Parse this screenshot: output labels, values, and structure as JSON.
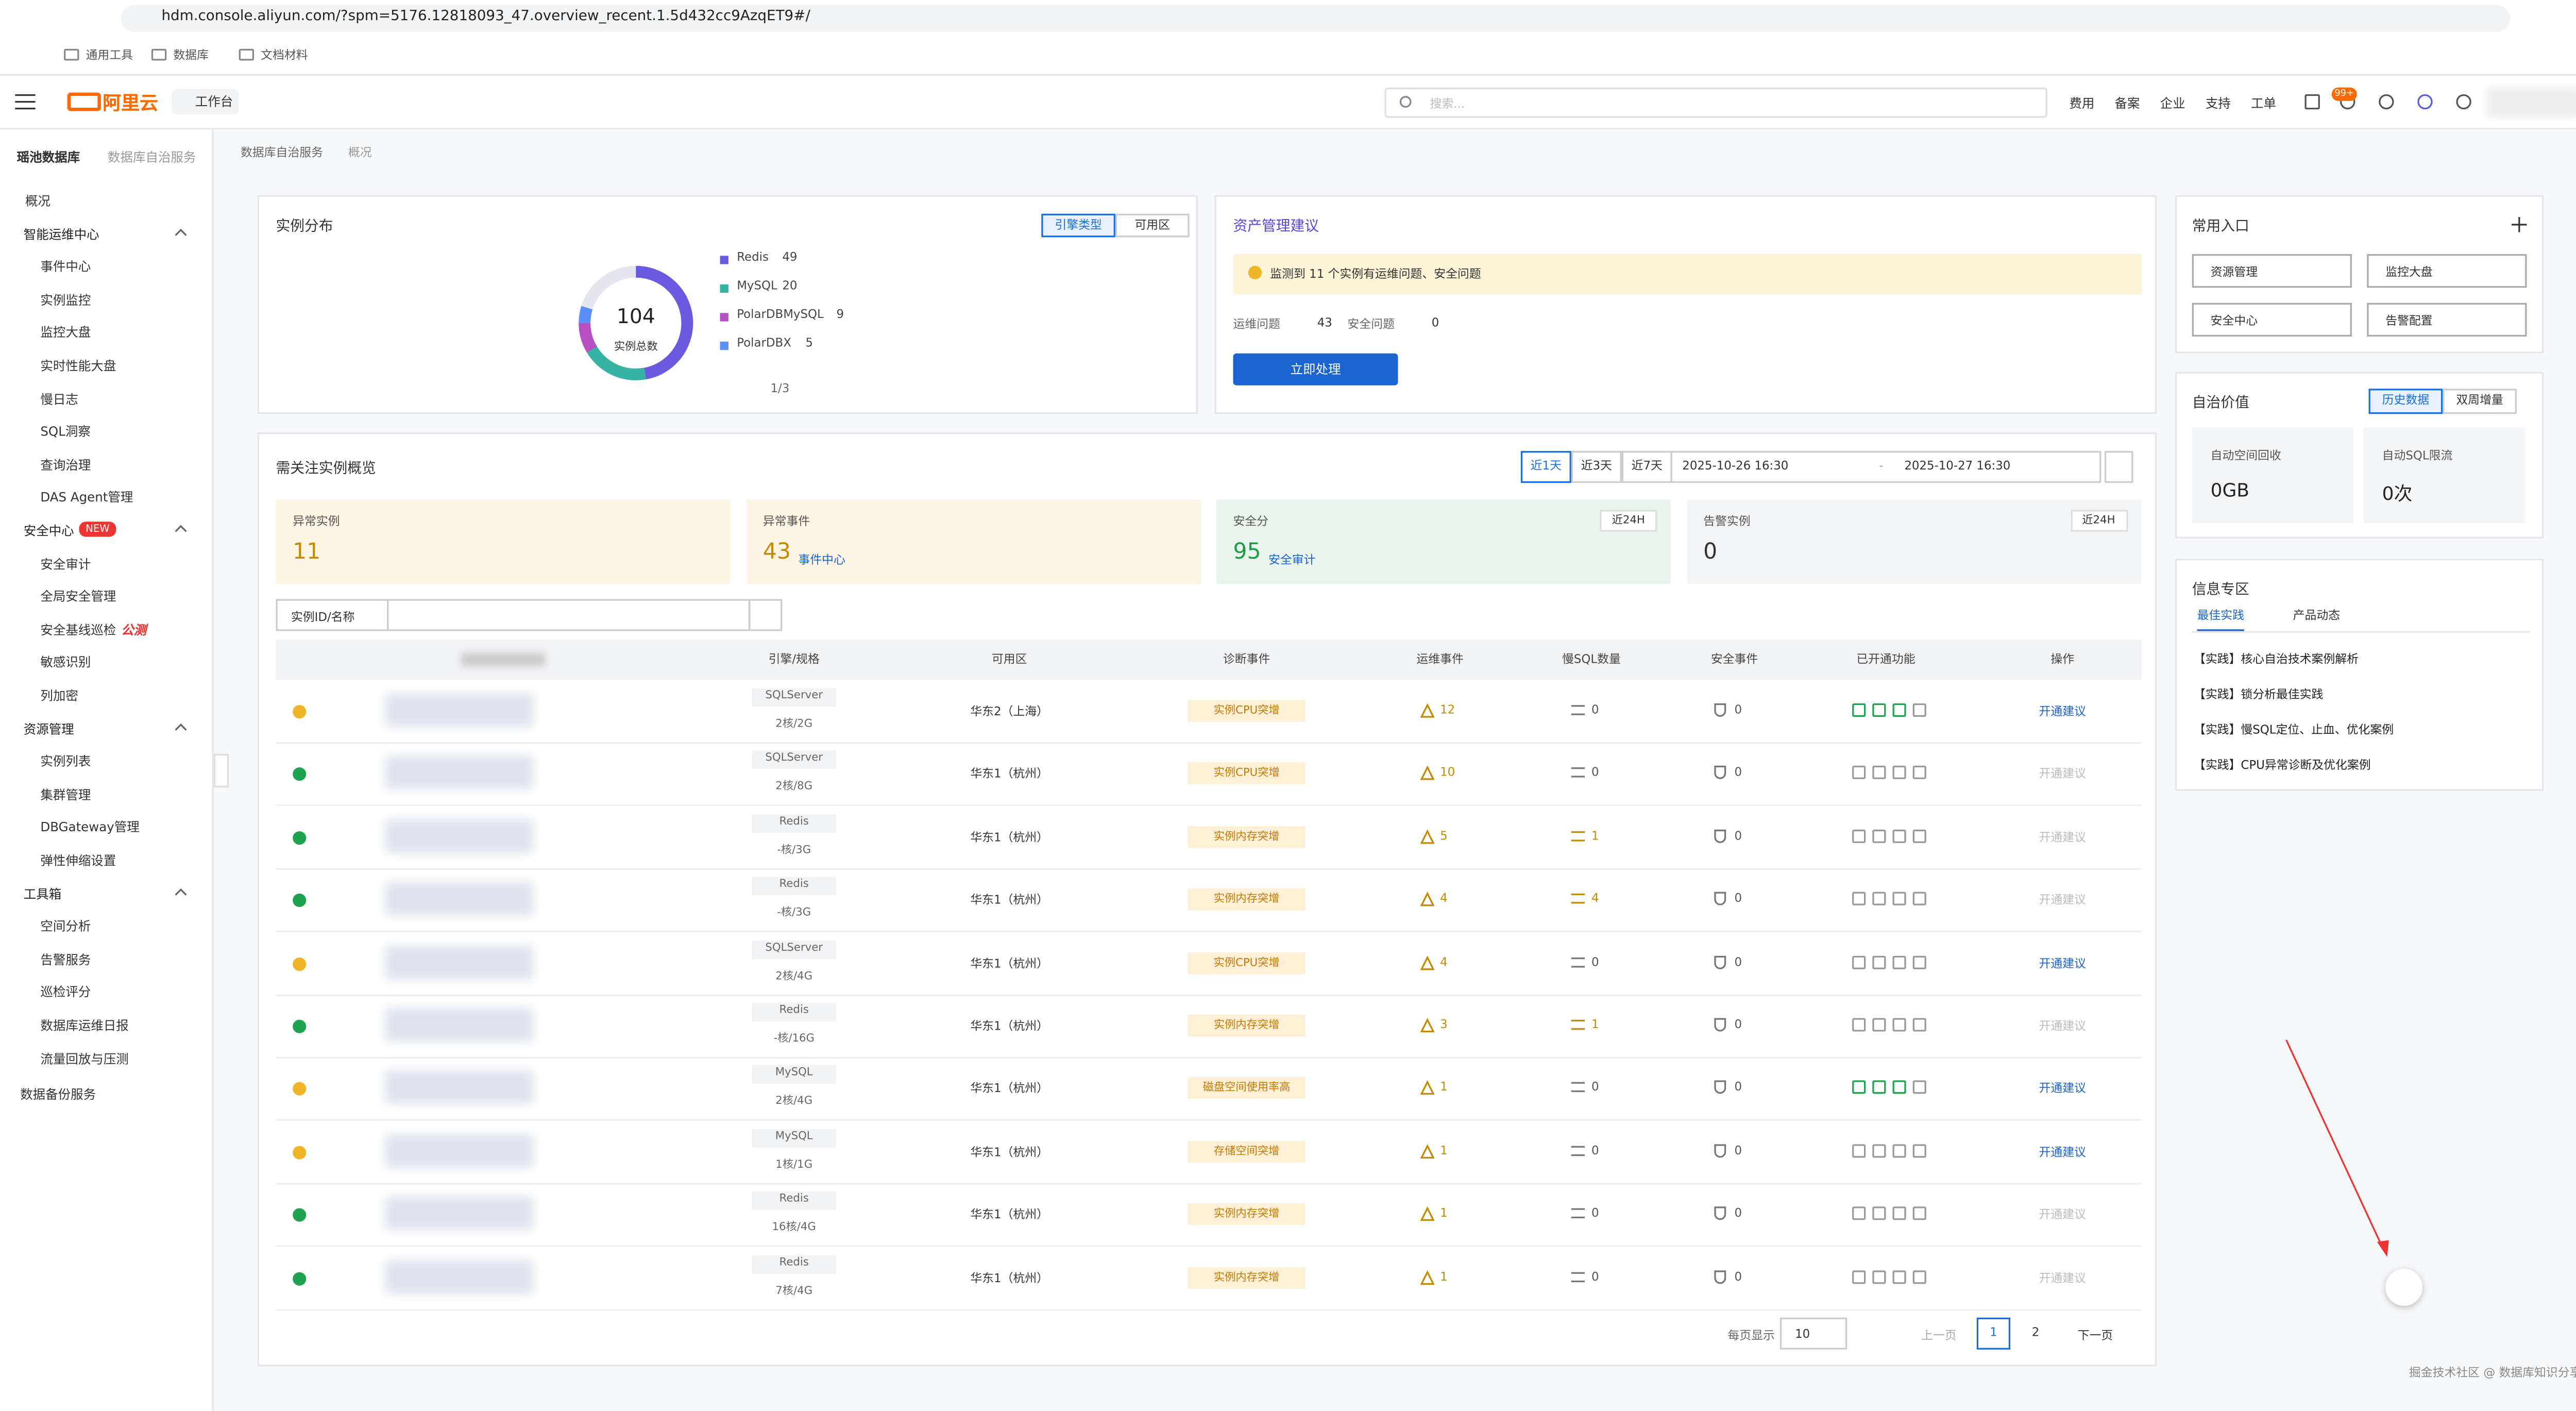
{
  "browser": {
    "url": "hdm.console.aliyun.com/?spm=5176.12818093_47.overview_recent.1.5d432cc9AzqET9#/",
    "bookmarks": [
      "通用工具",
      "数据库",
      "文档材料"
    ]
  },
  "topbar": {
    "logo": "阿里云",
    "workbench": "工作台",
    "search_placeholder": "搜索...",
    "links": [
      "费用",
      "备案",
      "企业",
      "支持",
      "工单"
    ],
    "badge": "99+"
  },
  "sidebar": {
    "breadcrumb": [
      "瑶池数据库",
      "数据库自治服务"
    ],
    "top": "概况",
    "groups": [
      {
        "title": "智能运维中心",
        "items": [
          "事件中心",
          "实例监控",
          "监控大盘",
          "实时性能大盘",
          "慢日志",
          "SQL洞察",
          "查询治理",
          "DAS Agent管理"
        ]
      },
      {
        "title": "安全中心",
        "tag": "NEW",
        "items": [
          "安全审计",
          "全局安全管理",
          {
            "label": "安全基线巡检",
            "tag": "公测"
          },
          "敏感识别",
          "列加密"
        ]
      },
      {
        "title": "资源管理",
        "items": [
          "实例列表",
          "集群管理",
          "DBGateway管理",
          "弹性伸缩设置"
        ]
      },
      {
        "title": "工具箱",
        "items": [
          "空间分析",
          "告警服务",
          "巡检评分",
          "数据库运维日报",
          "流量回放与压测"
        ]
      }
    ],
    "bottom": "数据备份服务"
  },
  "breadcrumb": [
    "数据库自治服务",
    "概况"
  ],
  "distribution": {
    "title": "实例分布",
    "toggles": [
      "引擎类型",
      "可用区"
    ],
    "total": 104,
    "total_label": "实例总数",
    "pager": "1/3",
    "series": [
      {
        "name": "Redis",
        "value": 49,
        "color": "#6a5ae0"
      },
      {
        "name": "MySQL",
        "value": 20,
        "color": "#36b3a4"
      },
      {
        "name": "PolarDBMySQL",
        "value": 9,
        "color": "#b54fc2"
      },
      {
        "name": "PolarDBX",
        "value": 5,
        "color": "#5b8ff9"
      }
    ]
  },
  "assets": {
    "title": "资产管理建议",
    "alert": "监测到 11 个实例有运维问题、安全问题",
    "stats": [
      {
        "label": "运维问题",
        "value": 43
      },
      {
        "label": "安全问题",
        "value": 0
      }
    ],
    "button": "立即处理"
  },
  "shortcuts": {
    "title": "常用入口",
    "buttons": [
      "资源管理",
      "监控大盘",
      "安全中心",
      "告警配置"
    ]
  },
  "autonomy": {
    "title": "自治价值",
    "toggles": [
      "历史数据",
      "双周增量"
    ],
    "cards": [
      {
        "label": "自动空间回收",
        "value": "0GB"
      },
      {
        "label": "自动SQL限流",
        "value": "0次"
      }
    ]
  },
  "info": {
    "title": "信息专区",
    "tabs": [
      "最佳实践",
      "产品动态"
    ],
    "links": [
      "【实践】核心自治技术案例解析",
      "【实践】锁分析最佳实践",
      "【实践】慢SQL定位、止血、优化案例",
      "【实践】CPU异常诊断及优化案例"
    ]
  },
  "overview": {
    "title": "需关注实例概览",
    "ranges": [
      "近1天",
      "近3天",
      "近7天"
    ],
    "start": "2025-10-26 16:30",
    "separator": "-",
    "end": "2025-10-27 16:30",
    "stats": [
      {
        "label": "异常实例",
        "value": 11
      },
      {
        "label": "异常事件",
        "value": 43,
        "link": "事件中心"
      },
      {
        "label": "安全分",
        "value": 95,
        "link": "安全审计",
        "tag": "近24H"
      },
      {
        "label": "告警实例",
        "value": 0,
        "tag": "近24H"
      }
    ],
    "filter": "实例ID/名称",
    "headers": [
      "引擎/规格",
      "可用区",
      "诊断事件",
      "运维事件",
      "慢SQL数量",
      "安全事件",
      "已开通功能",
      "操作"
    ],
    "rows": [
      {
        "status": "warning",
        "engine": "SQLServer",
        "spec": "2核/2G",
        "zone": "华东2（上海）",
        "diag": "实例CPU突增",
        "ops": 12,
        "slow": 0,
        "sec": 0,
        "action": "开通建议",
        "enabled": true,
        "features": true
      },
      {
        "status": "normal",
        "engine": "SQLServer",
        "spec": "2核/8G",
        "zone": "华东1（杭州）",
        "diag": "实例CPU突增",
        "ops": 10,
        "slow": 0,
        "sec": 0,
        "action": "开通建议",
        "enabled": false,
        "features": false
      },
      {
        "status": "normal",
        "engine": "Redis",
        "spec": "-核/3G",
        "zone": "华东1（杭州）",
        "diag": "实例内存突增",
        "ops": 5,
        "slow": 1,
        "sec": 0,
        "action": "开通建议",
        "enabled": false,
        "features": false
      },
      {
        "status": "normal",
        "engine": "Redis",
        "spec": "-核/3G",
        "zone": "华东1（杭州）",
        "diag": "实例内存突增",
        "ops": 4,
        "slow": 4,
        "sec": 0,
        "action": "开通建议",
        "enabled": false,
        "features": false
      },
      {
        "status": "warning",
        "engine": "SQLServer",
        "spec": "2核/4G",
        "zone": "华东1（杭州）",
        "diag": "实例CPU突增",
        "ops": 4,
        "slow": 0,
        "sec": 0,
        "action": "开通建议",
        "enabled": true,
        "features": false
      },
      {
        "status": "normal",
        "engine": "Redis",
        "spec": "-核/16G",
        "zone": "华东1（杭州）",
        "diag": "实例内存突增",
        "ops": 3,
        "slow": 1,
        "sec": 0,
        "action": "开通建议",
        "enabled": false,
        "features": false
      },
      {
        "status": "warning",
        "engine": "MySQL",
        "spec": "2核/4G",
        "zone": "华东1（杭州）",
        "diag": "磁盘空间使用率高",
        "ops": 1,
        "slow": 0,
        "sec": 0,
        "action": "开通建议",
        "enabled": true,
        "features": true
      },
      {
        "status": "warning",
        "engine": "MySQL",
        "spec": "1核/1G",
        "zone": "华东1（杭州）",
        "diag": "存储空间突增",
        "ops": 1,
        "slow": 0,
        "sec": 0,
        "action": "开通建议",
        "enabled": true,
        "features": false
      },
      {
        "status": "normal",
        "engine": "Redis",
        "spec": "16核/4G",
        "zone": "华东1（杭州）",
        "diag": "实例内存突增",
        "ops": 1,
        "slow": 0,
        "sec": 0,
        "action": "开通建议",
        "enabled": false,
        "features": false
      },
      {
        "status": "normal",
        "engine": "Redis",
        "spec": "7核/4G",
        "zone": "华东1（杭州）",
        "diag": "实例内存突增",
        "ops": 1,
        "slow": 0,
        "sec": 0,
        "action": "开通建议",
        "enabled": false,
        "features": false
      }
    ],
    "pagination": {
      "label": "每页显示",
      "size": "10",
      "prev": "上一页",
      "pages": [
        1,
        2
      ],
      "next": "下一页"
    }
  },
  "watermark": "掘金技术社区 @ 数据库知识分享者"
}
